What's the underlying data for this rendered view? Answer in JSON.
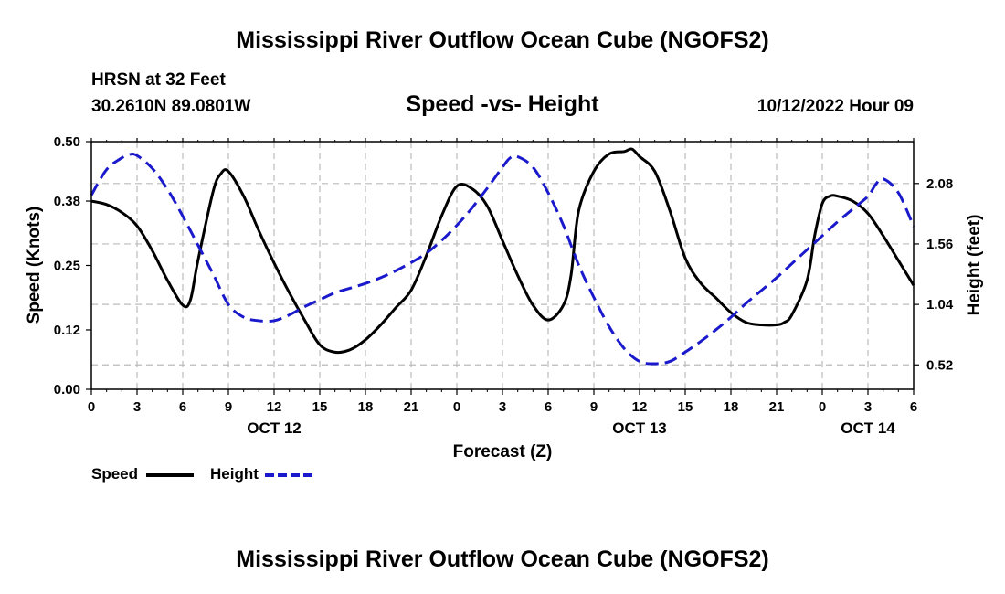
{
  "header": {
    "main_title": "Mississippi River Outflow Ocean Cube (NGOFS2)",
    "station": "HRSN at 32 Feet",
    "coords": "30.2610N  89.0801W",
    "subtitle": "Speed -vs- Height",
    "datetime": "10/12/2022 Hour 09"
  },
  "footer": {
    "title": "Mississippi River Outflow Ocean Cube (NGOFS2)"
  },
  "legend": {
    "speed_label": "Speed",
    "height_label": "Height"
  },
  "colors": {
    "speed": "#000000",
    "height": "#1a1acc",
    "grid": "#bbbbbb"
  },
  "chart_data": {
    "type": "line",
    "title": "Speed -vs- Height",
    "xlabel": "Forecast (Z)",
    "ylabel": "Speed (Knots)",
    "y2label": "Height (feet)",
    "x_range": [
      0,
      54
    ],
    "ylim": [
      0,
      0.5
    ],
    "y2lim": [
      0.31,
      2.44
    ],
    "x_ticks": [
      0,
      3,
      6,
      9,
      12,
      15,
      18,
      21,
      24,
      27,
      30,
      33,
      36,
      39,
      42,
      45,
      48,
      51,
      54
    ],
    "x_tick_labels": [
      "0",
      "3",
      "6",
      "9",
      "12",
      "15",
      "18",
      "21",
      "0",
      "3",
      "6",
      "9",
      "12",
      "15",
      "18",
      "21",
      "0",
      "3",
      "6"
    ],
    "y_ticks": [
      0.0,
      0.12,
      0.25,
      0.38,
      0.5
    ],
    "y_tick_labels": [
      "0.00",
      "0.12",
      "0.25",
      "0.38",
      "0.50"
    ],
    "y2_ticks": [
      0.52,
      1.04,
      1.56,
      2.08
    ],
    "y2_tick_labels": [
      "0.52",
      "1.04",
      "1.56",
      "2.08"
    ],
    "date_labels": [
      {
        "x": 12,
        "label": "OCT 12"
      },
      {
        "x": 36,
        "label": "OCT 13"
      },
      {
        "x": 51,
        "label": "OCT 14"
      }
    ],
    "series": [
      {
        "name": "Speed",
        "axis": "left",
        "style": "solid",
        "x": [
          0,
          1,
          2,
          3,
          4,
          5,
          6,
          6.5,
          7,
          8,
          8.5,
          9,
          10,
          11,
          12,
          13,
          14,
          15,
          16,
          17,
          18,
          19,
          20,
          21,
          22,
          23,
          24,
          25,
          26,
          27,
          28,
          29,
          30,
          31,
          31.5,
          32,
          33,
          34,
          35,
          35.5,
          36,
          37,
          38,
          39,
          40,
          41,
          42,
          43,
          44,
          45,
          45.5,
          46,
          47,
          47.5,
          48,
          48.5,
          49,
          50,
          51,
          52,
          53,
          54
        ],
        "y": [
          0.38,
          0.373,
          0.357,
          0.33,
          0.28,
          0.22,
          0.17,
          0.18,
          0.26,
          0.4,
          0.435,
          0.44,
          0.39,
          0.32,
          0.255,
          0.195,
          0.14,
          0.09,
          0.075,
          0.08,
          0.1,
          0.13,
          0.165,
          0.2,
          0.27,
          0.35,
          0.41,
          0.405,
          0.37,
          0.3,
          0.23,
          0.17,
          0.14,
          0.17,
          0.23,
          0.36,
          0.44,
          0.475,
          0.48,
          0.485,
          0.47,
          0.44,
          0.36,
          0.265,
          0.215,
          0.185,
          0.155,
          0.135,
          0.13,
          0.13,
          0.135,
          0.15,
          0.22,
          0.31,
          0.375,
          0.39,
          0.39,
          0.38,
          0.355,
          0.31,
          0.26,
          0.21
        ]
      },
      {
        "name": "Height",
        "axis": "right",
        "style": "dashed",
        "x": [
          0,
          1,
          2,
          2.5,
          3,
          4,
          5,
          6,
          7,
          8,
          9,
          10,
          11,
          12,
          13,
          14,
          15,
          16,
          17,
          18,
          19,
          20,
          21,
          22,
          23,
          24,
          25,
          26,
          27,
          27.5,
          28,
          29,
          30,
          31,
          32,
          33,
          34,
          35,
          36,
          37,
          38,
          39,
          40,
          41,
          42,
          43,
          44,
          45,
          46,
          47,
          48,
          49,
          50,
          51,
          51.5,
          52,
          53,
          54
        ],
        "y": [
          1.98,
          2.2,
          2.3,
          2.33,
          2.32,
          2.21,
          2.03,
          1.8,
          1.55,
          1.3,
          1.04,
          0.93,
          0.9,
          0.9,
          0.95,
          1.02,
          1.08,
          1.14,
          1.18,
          1.22,
          1.27,
          1.33,
          1.4,
          1.48,
          1.59,
          1.72,
          1.87,
          2.04,
          2.22,
          2.3,
          2.31,
          2.22,
          2.0,
          1.72,
          1.38,
          1.1,
          0.85,
          0.66,
          0.55,
          0.53,
          0.55,
          0.63,
          0.72,
          0.82,
          0.93,
          1.05,
          1.16,
          1.27,
          1.39,
          1.51,
          1.63,
          1.75,
          1.86,
          1.97,
          2.07,
          2.12,
          2.0,
          1.71
        ]
      }
    ]
  }
}
